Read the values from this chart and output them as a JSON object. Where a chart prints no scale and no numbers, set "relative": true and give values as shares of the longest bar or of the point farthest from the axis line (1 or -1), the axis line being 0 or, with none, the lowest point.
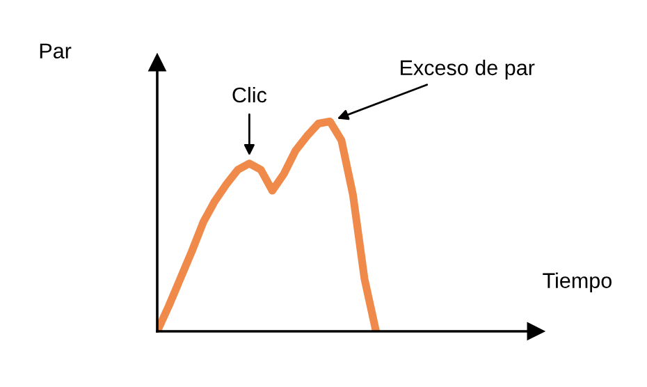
{
  "chart_data": {
    "type": "line",
    "relative": true,
    "ylabel": "Par",
    "categories": [
      null,
      null,
      null,
      null,
      null,
      null,
      null,
      null,
      null,
      null,
      null,
      null,
      null,
      null,
      null,
      null,
      null,
      null,
      null,
      null
    ],
    "series": [
      {
        "color": "#f08a4b",
        "values": [
          0,
          0.12,
          0.25,
          0.38,
          0.52,
          0.62,
          0.7,
          0.77,
          0.8,
          0.77,
          0.67,
          0.75,
          0.86,
          0.93,
          0.99,
          1.0,
          0.91,
          0.65,
          0.25,
          0
        ]
      }
    ],
    "annotations": [
      {
        "text": "Clic",
        "y": 0.8
      },
      "Exceso de par",
      "Tiempo"
    ],
    "grid": false,
    "legend": false,
    "marker": "none",
    "line_style": "solid"
  }
}
